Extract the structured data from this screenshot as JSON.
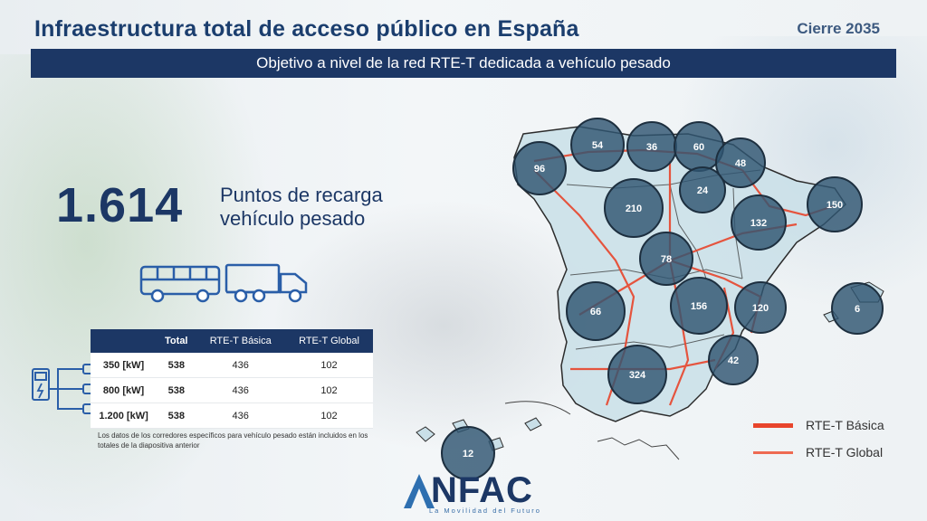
{
  "header": {
    "title": "Infraestructura total de acceso público en España",
    "close_label": "Cierre 2035",
    "subtitle": "Objetivo a nivel de la red RTE-T dedicada a vehículo pesado"
  },
  "summary": {
    "value": "1.614",
    "caption_line1": "Puntos de recarga",
    "caption_line2": "vehículo pesado"
  },
  "table": {
    "headers": [
      "",
      "Total",
      "RTE-T Básica",
      "RTE-T Global"
    ],
    "rows": [
      {
        "power": "350 [kW]",
        "total": "538",
        "basica": "436",
        "global": "102"
      },
      {
        "power": "800 [kW]",
        "total": "538",
        "basica": "436",
        "global": "102"
      },
      {
        "power": "1.200 [kW]",
        "total": "538",
        "basica": "436",
        "global": "102"
      }
    ],
    "note": "Los datos de los corredores específicos para vehículo pesado están incluidos en los totales de la diapositiva anterior"
  },
  "map": {
    "regions": [
      {
        "name": "galicia",
        "value": "96"
      },
      {
        "name": "asturias",
        "value": "54"
      },
      {
        "name": "cantabria",
        "value": "36"
      },
      {
        "name": "pais-vasco",
        "value": "60"
      },
      {
        "name": "navarra",
        "value": "48"
      },
      {
        "name": "la-rioja",
        "value": "24"
      },
      {
        "name": "castilla-leon",
        "value": "210"
      },
      {
        "name": "aragon",
        "value": "132"
      },
      {
        "name": "cataluna",
        "value": "150"
      },
      {
        "name": "madrid",
        "value": "78"
      },
      {
        "name": "extremadura",
        "value": "66"
      },
      {
        "name": "castilla-la-mancha",
        "value": "156"
      },
      {
        "name": "valencia",
        "value": "120"
      },
      {
        "name": "baleares",
        "value": "6"
      },
      {
        "name": "murcia",
        "value": "42"
      },
      {
        "name": "andalucia",
        "value": "324"
      },
      {
        "name": "canarias",
        "value": "12"
      }
    ]
  },
  "legend": [
    {
      "label": "RTE-T Básica",
      "color": "#e8452c"
    },
    {
      "label": "RTE-T Global",
      "color": "#ee6a52"
    }
  ],
  "logo": {
    "word": "NFAC",
    "tagline": "La Movilidad del Futuro"
  },
  "colors": {
    "navy": "#1c3765",
    "circle": "#2f5571",
    "route": "#e8452c"
  }
}
